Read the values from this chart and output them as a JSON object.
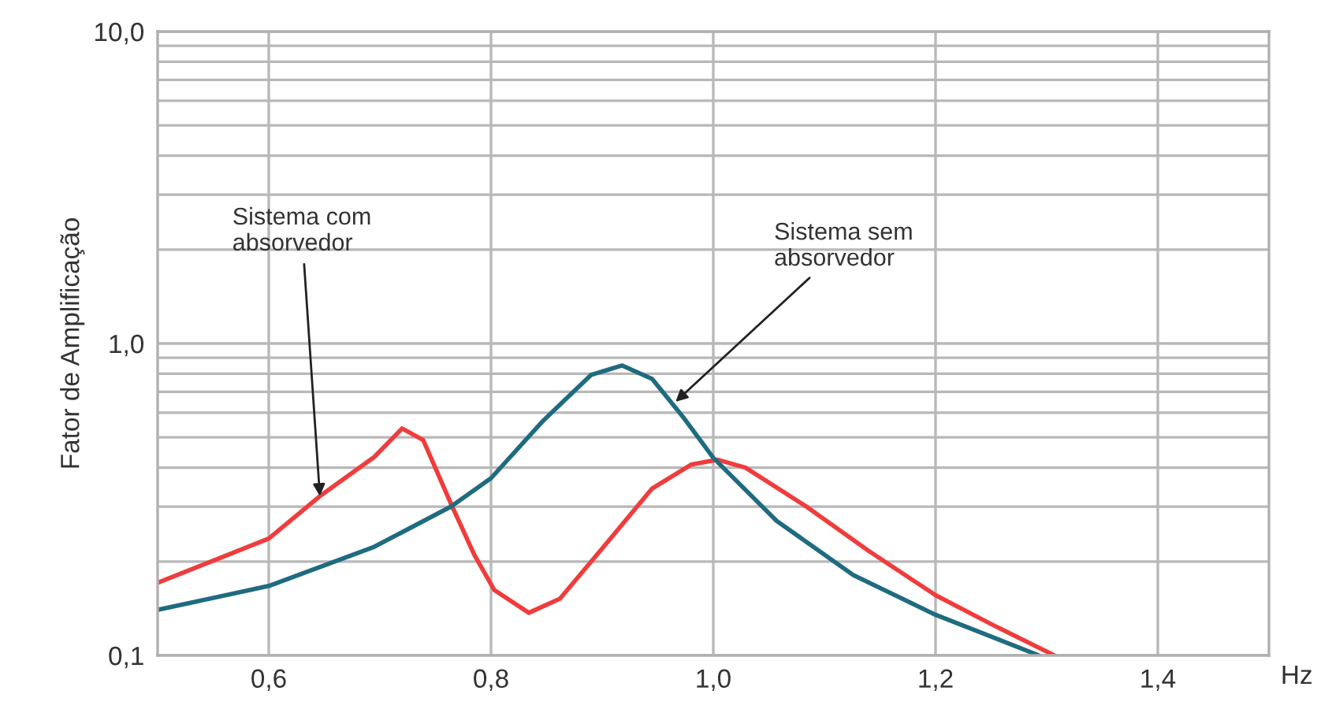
{
  "chart_data": {
    "type": "line",
    "xlabel": "Hz",
    "ylabel": "Fator de Amplificação",
    "log": "y",
    "grid": true,
    "legend": false,
    "marker": "none",
    "line_style": "solid",
    "xlim": [
      0.5,
      1.5
    ],
    "ylim": [
      0.1,
      10
    ],
    "xticks": [
      {
        "value": 0.6,
        "label": "0,6"
      },
      {
        "value": 0.8,
        "label": "0,8"
      },
      {
        "value": 1.0,
        "label": "1,0"
      },
      {
        "value": 1.2,
        "label": "1,2"
      },
      {
        "value": 1.4,
        "label": "1,4"
      }
    ],
    "yticks": [
      {
        "value": 0.1,
        "label": "0,1"
      },
      {
        "value": 0.2,
        "label": null
      },
      {
        "value": 0.3,
        "label": null
      },
      {
        "value": 0.4,
        "label": null
      },
      {
        "value": 0.5,
        "label": null
      },
      {
        "value": 0.6,
        "label": null
      },
      {
        "value": 0.7,
        "label": null
      },
      {
        "value": 0.8,
        "label": null
      },
      {
        "value": 0.9,
        "label": null
      },
      {
        "value": 1,
        "label": "1,0"
      },
      {
        "value": 2,
        "label": null
      },
      {
        "value": 3,
        "label": null
      },
      {
        "value": 4,
        "label": null
      },
      {
        "value": 5,
        "label": null
      },
      {
        "value": 6,
        "label": null
      },
      {
        "value": 7,
        "label": null
      },
      {
        "value": 8,
        "label": null
      },
      {
        "value": 9,
        "label": null
      },
      {
        "value": 10,
        "label": "10,0"
      }
    ],
    "series": [
      {
        "color": "#f03c3c",
        "x": [
          0.5,
          0.6,
          0.646,
          0.695,
          0.72,
          0.739,
          0.764,
          0.785,
          0.803,
          0.834,
          0.862,
          0.904,
          0.945,
          0.98,
          1.004,
          1.029,
          1.085,
          1.14,
          1.2,
          1.252,
          1.307
        ],
        "values": [
          0.171,
          0.237,
          0.324,
          0.433,
          0.534,
          0.49,
          0.306,
          0.21,
          0.162,
          0.137,
          0.152,
          0.229,
          0.343,
          0.409,
          0.424,
          0.4,
          0.298,
          0.216,
          0.156,
          0.125,
          0.1
        ]
      },
      {
        "color": "#1f6b80",
        "x": [
          0.5,
          0.6,
          0.695,
          0.764,
          0.8,
          0.847,
          0.89,
          0.918,
          0.945,
          0.973,
          1.0,
          1.057,
          1.126,
          1.2,
          1.293
        ],
        "values": [
          0.14,
          0.167,
          0.223,
          0.3,
          0.37,
          0.566,
          0.793,
          0.85,
          0.77,
          0.58,
          0.43,
          0.27,
          0.181,
          0.135,
          0.1
        ]
      }
    ],
    "annotations": [
      {
        "text": "Sistema com\nabsorvedor",
        "x": 0.646,
        "y": 0.324
      },
      {
        "text": "Sistema sem\nabsorvedor",
        "x": 0.966,
        "y": 0.65
      }
    ]
  }
}
